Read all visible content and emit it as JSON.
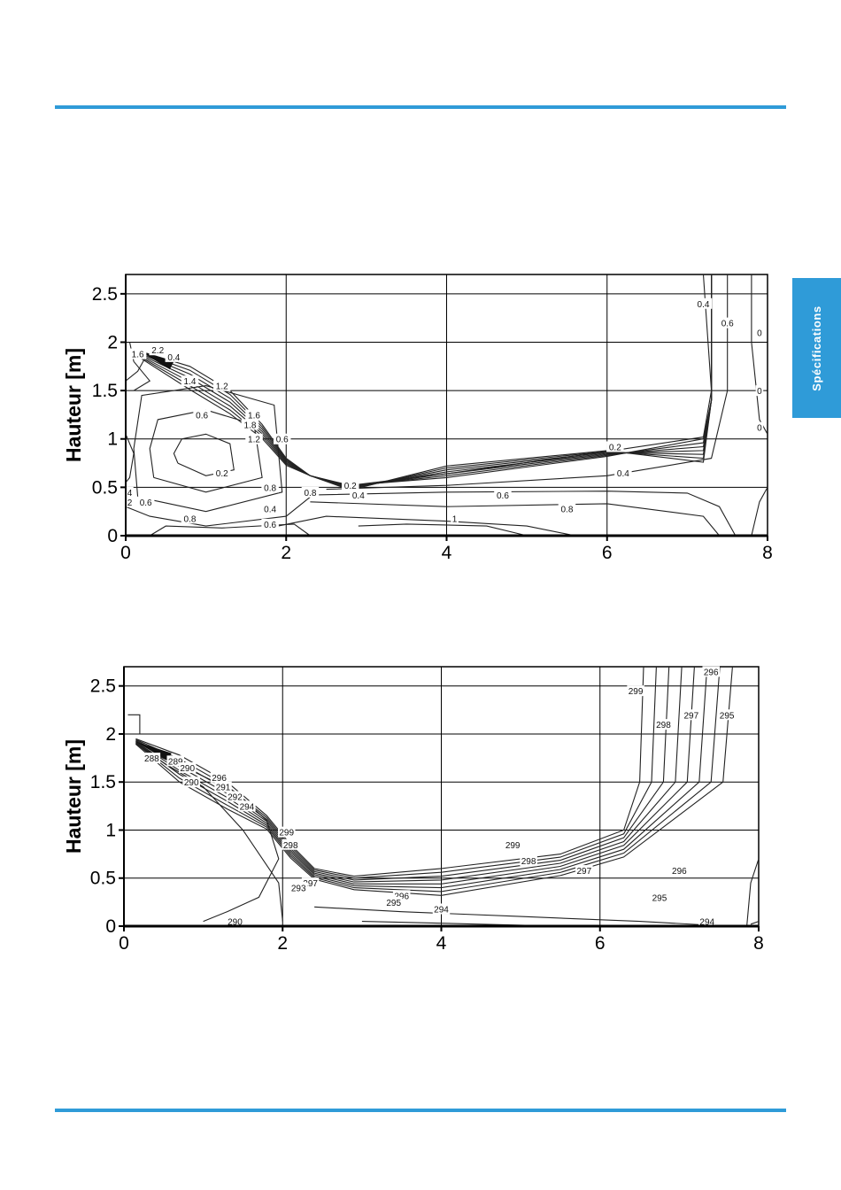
{
  "side_tab": {
    "label": "Spécifications"
  },
  "chart_data": [
    {
      "type": "contour",
      "title": "",
      "xlabel": "",
      "ylabel": "Hauteur [m]",
      "xlim": [
        0,
        8
      ],
      "ylim": [
        0,
        2.7
      ],
      "xticks": [
        "0",
        "2",
        "4",
        "6",
        "8"
      ],
      "yticks": [
        "0",
        "0.5",
        "1",
        "1.5",
        "2",
        "2.5"
      ],
      "grid": true,
      "levels": [
        0.2,
        0.4,
        0.6,
        0.8,
        1,
        1.2,
        1.4,
        1.6,
        1.8,
        2,
        2.2
      ],
      "contour_labels": [
        {
          "text": "1.6",
          "x": 0.15,
          "y": 1.88
        },
        {
          "text": "2.2",
          "x": 0.4,
          "y": 1.92
        },
        {
          "text": "0.4",
          "x": 0.6,
          "y": 1.85
        },
        {
          "text": "1.4",
          "x": 0.8,
          "y": 1.6
        },
        {
          "text": "1.2",
          "x": 1.2,
          "y": 1.55
        },
        {
          "text": "1.6",
          "x": 1.6,
          "y": 1.25
        },
        {
          "text": "1.8",
          "x": 1.55,
          "y": 1.15
        },
        {
          "text": "1.2",
          "x": 1.6,
          "y": 1.0
        },
        {
          "text": "0.6",
          "x": 0.95,
          "y": 1.25
        },
        {
          "text": "0.6",
          "x": 1.95,
          "y": 1.0
        },
        {
          "text": "0.2",
          "x": 1.2,
          "y": 0.65
        },
        {
          "text": "0.8",
          "x": 1.8,
          "y": 0.5
        },
        {
          "text": "0.8",
          "x": 2.3,
          "y": 0.45
        },
        {
          "text": "0.4",
          "x": 1.8,
          "y": 0.28
        },
        {
          "text": "0.6",
          "x": 1.8,
          "y": 0.12
        },
        {
          "text": "0.8",
          "x": 0.8,
          "y": 0.18
        },
        {
          "text": "4",
          "x": 0.05,
          "y": 0.45
        },
        {
          "text": "2",
          "x": 0.05,
          "y": 0.35
        },
        {
          "text": "0.6",
          "x": 0.25,
          "y": 0.35
        },
        {
          "text": "0.2",
          "x": 2.8,
          "y": 0.52
        },
        {
          "text": "0.4",
          "x": 2.9,
          "y": 0.42
        },
        {
          "text": "1",
          "x": 4.1,
          "y": 0.18
        },
        {
          "text": "0.6",
          "x": 4.7,
          "y": 0.42
        },
        {
          "text": "0.8",
          "x": 5.5,
          "y": 0.28
        },
        {
          "text": "0.2",
          "x": 6.1,
          "y": 0.92
        },
        {
          "text": "0.4",
          "x": 6.2,
          "y": 0.65
        },
        {
          "text": "0.4",
          "x": 7.2,
          "y": 2.4
        },
        {
          "text": "0.6",
          "x": 7.5,
          "y": 2.2
        },
        {
          "text": "0",
          "x": 7.9,
          "y": 2.1
        },
        {
          "text": "0",
          "x": 7.9,
          "y": 1.5
        },
        {
          "text": "0",
          "x": 7.9,
          "y": 1.12
        }
      ]
    },
    {
      "type": "contour",
      "title": "",
      "xlabel": "",
      "ylabel": "Hauteur [m]",
      "xlim": [
        0,
        8
      ],
      "ylim": [
        0,
        2.7
      ],
      "xticks": [
        "0",
        "2",
        "4",
        "6",
        "8"
      ],
      "yticks": [
        "0",
        "0.5",
        "1",
        "1.5",
        "2",
        "2.5"
      ],
      "grid": true,
      "levels": [
        288,
        289,
        290,
        291,
        292,
        293,
        294,
        295,
        296,
        297,
        298,
        299
      ],
      "contour_labels": [
        {
          "text": "296",
          "x": 7.4,
          "y": 2.65
        },
        {
          "text": "299",
          "x": 6.45,
          "y": 2.45
        },
        {
          "text": "298",
          "x": 6.8,
          "y": 2.1
        },
        {
          "text": "297",
          "x": 7.15,
          "y": 2.2
        },
        {
          "text": "295",
          "x": 7.6,
          "y": 2.2
        },
        {
          "text": "288",
          "x": 0.35,
          "y": 1.75
        },
        {
          "text": "289",
          "x": 0.65,
          "y": 1.72
        },
        {
          "text": "290",
          "x": 0.8,
          "y": 1.65
        },
        {
          "text": "290",
          "x": 0.85,
          "y": 1.5
        },
        {
          "text": "296",
          "x": 1.2,
          "y": 1.55
        },
        {
          "text": "291",
          "x": 1.25,
          "y": 1.45
        },
        {
          "text": "292",
          "x": 1.4,
          "y": 1.35
        },
        {
          "text": "294",
          "x": 1.55,
          "y": 1.25
        },
        {
          "text": "299",
          "x": 2.05,
          "y": 0.98
        },
        {
          "text": "298",
          "x": 2.1,
          "y": 0.85
        },
        {
          "text": "297",
          "x": 2.35,
          "y": 0.45
        },
        {
          "text": "293",
          "x": 2.2,
          "y": 0.4
        },
        {
          "text": "299",
          "x": 4.9,
          "y": 0.85
        },
        {
          "text": "298",
          "x": 5.1,
          "y": 0.68
        },
        {
          "text": "297",
          "x": 5.8,
          "y": 0.58
        },
        {
          "text": "296",
          "x": 7.0,
          "y": 0.58
        },
        {
          "text": "296",
          "x": 3.5,
          "y": 0.32
        },
        {
          "text": "295",
          "x": 3.4,
          "y": 0.25
        },
        {
          "text": "294",
          "x": 4.0,
          "y": 0.18
        },
        {
          "text": "295",
          "x": 6.75,
          "y": 0.3
        },
        {
          "text": "294",
          "x": 7.35,
          "y": 0.05
        },
        {
          "text": "290",
          "x": 1.4,
          "y": 0.05
        }
      ]
    }
  ]
}
